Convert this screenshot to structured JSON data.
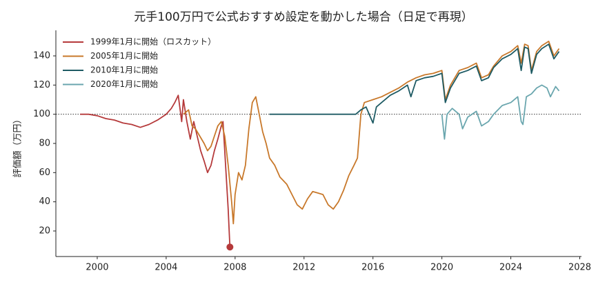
{
  "chart_data": {
    "type": "line",
    "title": "元手100万円で公式おすすめ設定を動かした場合（日足で再現）",
    "y_label": "評価額（万円）",
    "xlim": [
      1997.6,
      2028.1
    ],
    "xticks": [
      2000,
      2004,
      2008,
      2012,
      2016,
      2020,
      2024,
      2028
    ],
    "ylim": [
      2.5,
      157.5
    ],
    "yticks": [
      20,
      40,
      60,
      80,
      100,
      120,
      140
    ],
    "reference_line": 100,
    "legend": "upper left",
    "series": [
      {
        "name": "1999年1月に開始（ロスカット）",
        "color": "#b5393a",
        "end_marker": true,
        "x": [
          1999.0,
          1999.5,
          2000.0,
          2000.5,
          2001.0,
          2001.5,
          2002.0,
          2002.5,
          2003.0,
          2003.5,
          2004.0,
          2004.3,
          2004.5,
          2004.7,
          2004.9,
          2005.0,
          2005.2,
          2005.4,
          2005.6,
          2005.8,
          2006.0,
          2006.2,
          2006.4,
          2006.6,
          2006.8,
          2007.0,
          2007.2,
          2007.3,
          2007.4,
          2007.5,
          2007.6,
          2007.7
        ],
        "values": [
          100,
          100,
          99,
          97,
          96,
          94,
          93,
          91,
          93,
          96,
          100,
          104,
          108,
          113,
          95,
          110,
          95,
          83,
          95,
          85,
          75,
          68,
          60,
          65,
          75,
          83,
          92,
          95,
          75,
          55,
          35,
          9
        ]
      },
      {
        "name": "2005年1月に開始",
        "color": "#c8782a",
        "x": [
          2005.0,
          2005.3,
          2005.5,
          2005.7,
          2006.0,
          2006.2,
          2006.4,
          2006.6,
          2006.8,
          2007.0,
          2007.2,
          2007.4,
          2007.6,
          2007.8,
          2007.9,
          2008.0,
          2008.2,
          2008.4,
          2008.6,
          2008.8,
          2009.0,
          2009.2,
          2009.4,
          2009.6,
          2009.8,
          2010.0,
          2010.3,
          2010.6,
          2011.0,
          2011.3,
          2011.6,
          2011.9,
          2012.2,
          2012.5,
          2012.8,
          2013.1,
          2013.4,
          2013.7,
          2014.0,
          2014.3,
          2014.6,
          2014.9,
          2015.1,
          2015.3,
          2015.5,
          2016.0,
          2016.5,
          2017.0,
          2017.5,
          2018.0,
          2018.5,
          2019.0,
          2019.5,
          2020.0,
          2020.2,
          2020.5,
          2021.0,
          2021.5,
          2022.0,
          2022.3,
          2022.7,
          2023.0,
          2023.5,
          2024.0,
          2024.4,
          2024.6,
          2024.8,
          2025.0,
          2025.2,
          2025.5,
          2025.8,
          2026.2,
          2026.5,
          2026.8
        ],
        "values": [
          100,
          103,
          92,
          90,
          84,
          80,
          75,
          78,
          85,
          92,
          95,
          85,
          65,
          40,
          25,
          45,
          60,
          55,
          65,
          90,
          108,
          112,
          100,
          88,
          80,
          70,
          65,
          57,
          52,
          45,
          38,
          35,
          42,
          47,
          46,
          45,
          38,
          35,
          40,
          48,
          58,
          65,
          70,
          100,
          108,
          110,
          112,
          115,
          118,
          122,
          125,
          127,
          128,
          130,
          110,
          120,
          130,
          132,
          135,
          125,
          127,
          133,
          140,
          143,
          147,
          135,
          148,
          147,
          130,
          143,
          147,
          150,
          140,
          145
        ]
      },
      {
        "name": "2010年1月に開始",
        "color": "#1d5a63",
        "x": [
          2010.0,
          2012.0,
          2015.0,
          2015.3,
          2015.6,
          2016.0,
          2016.2,
          2016.5,
          2017.0,
          2017.5,
          2018.0,
          2018.2,
          2018.5,
          2019.0,
          2019.5,
          2020.0,
          2020.2,
          2020.5,
          2021.0,
          2021.5,
          2022.0,
          2022.3,
          2022.7,
          2023.0,
          2023.5,
          2024.0,
          2024.4,
          2024.6,
          2024.8,
          2025.0,
          2025.2,
          2025.5,
          2025.8,
          2026.2,
          2026.5,
          2026.8
        ],
        "values": [
          100,
          100,
          100,
          103,
          105,
          94,
          105,
          108,
          113,
          116,
          120,
          112,
          123,
          125,
          126,
          128,
          108,
          118,
          128,
          130,
          133,
          123,
          125,
          132,
          138,
          141,
          145,
          130,
          146,
          145,
          128,
          141,
          145,
          148,
          138,
          143
        ]
      },
      {
        "name": "2020年1月に開始",
        "color": "#6aa6ae",
        "x": [
          2020.0,
          2020.15,
          2020.3,
          2020.6,
          2021.0,
          2021.2,
          2021.5,
          2022.0,
          2022.3,
          2022.7,
          2023.0,
          2023.5,
          2024.0,
          2024.4,
          2024.6,
          2024.7,
          2024.9,
          2025.2,
          2025.5,
          2025.8,
          2026.1,
          2026.3,
          2026.6,
          2026.8
        ],
        "values": [
          100,
          83,
          100,
          104,
          100,
          90,
          98,
          102,
          92,
          95,
          100,
          106,
          108,
          112,
          95,
          93,
          112,
          114,
          118,
          120,
          118,
          112,
          119,
          116
        ]
      }
    ]
  }
}
